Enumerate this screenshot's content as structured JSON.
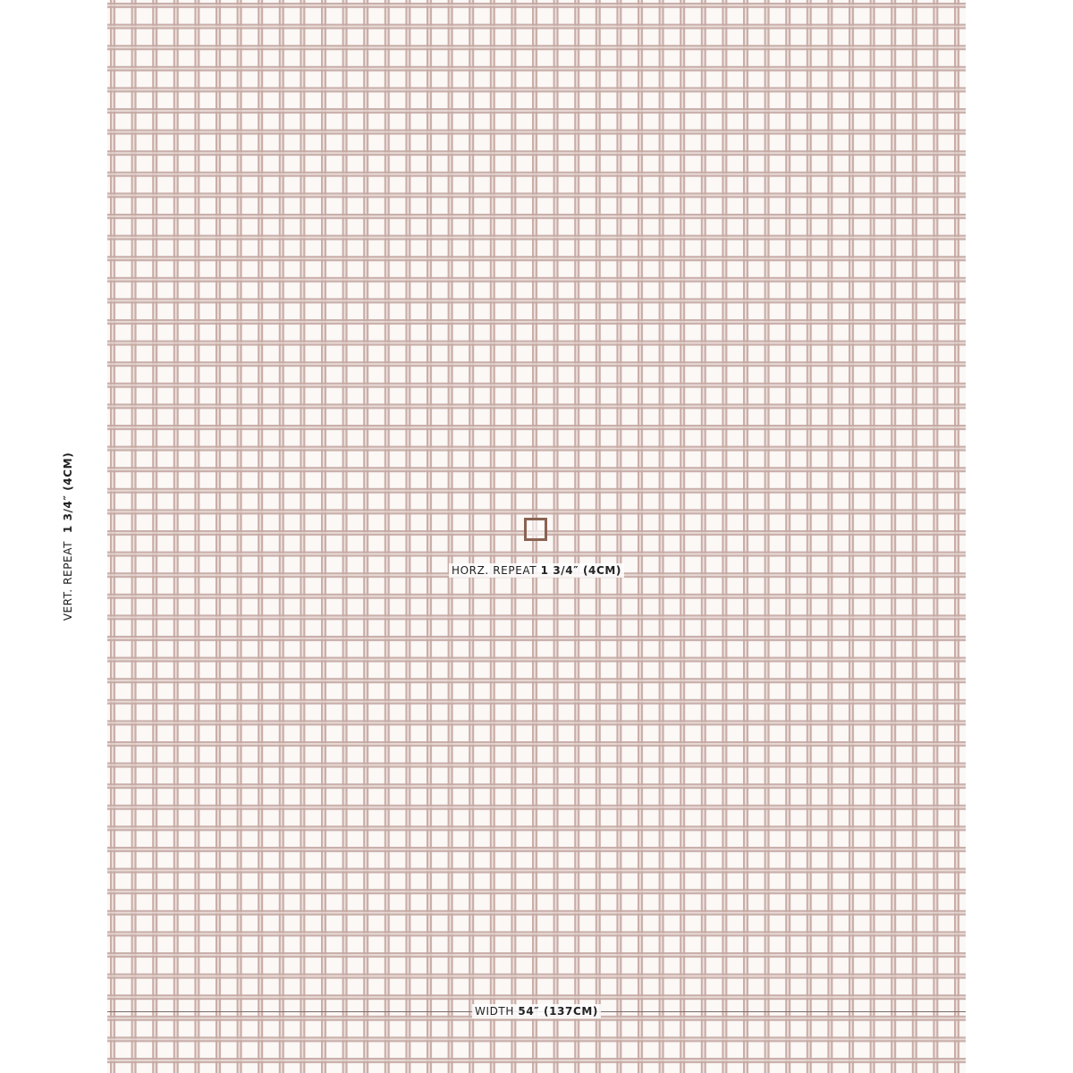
{
  "vertical_label": {
    "prefix": "VERT. REPEAT",
    "value": "1 3/4″ (4CM)"
  },
  "horizontal_label": {
    "prefix": "HORZ. REPEAT",
    "value": "1 3/4″ (4CM)"
  },
  "width_label": {
    "prefix": "WIDTH",
    "value": "54″ (137CM)"
  }
}
